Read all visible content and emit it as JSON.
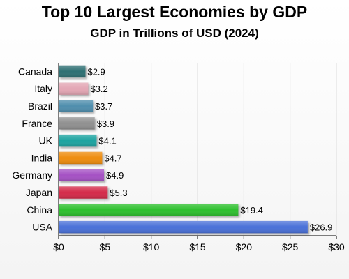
{
  "chart_data": {
    "type": "bar",
    "orientation": "horizontal",
    "title": "Top 10 Largest Economies by GDP",
    "subtitle": "GDP in Trillions of USD (2024)",
    "xlabel": "",
    "ylabel": "",
    "categories": [
      "Canada",
      "Italy",
      "Brazil",
      "France",
      "UK",
      "India",
      "Germany",
      "Japan",
      "China",
      "USA"
    ],
    "values": [
      2.9,
      3.2,
      3.7,
      3.9,
      4.1,
      4.7,
      4.9,
      5.3,
      19.4,
      26.9
    ],
    "value_labels": [
      "$2.9",
      "$3.2",
      "$3.7",
      "$3.9",
      "$4.1",
      "$4.7",
      "$4.9",
      "$5.3",
      "$19.4",
      "$26.9"
    ],
    "colors": [
      "#2e6f73",
      "#e3a6b4",
      "#4f8ead",
      "#909090",
      "#1aa3a0",
      "#ee8c10",
      "#a551c4",
      "#d42a4a",
      "#2ec02e",
      "#4a6fd8"
    ],
    "xlim": [
      0,
      30
    ],
    "x_ticks": [
      0,
      5,
      10,
      15,
      20,
      25,
      30
    ],
    "x_tick_labels": [
      "$0",
      "$5",
      "$10",
      "$15",
      "$20",
      "$25",
      "$30"
    ],
    "grid": true,
    "legend": "none"
  }
}
